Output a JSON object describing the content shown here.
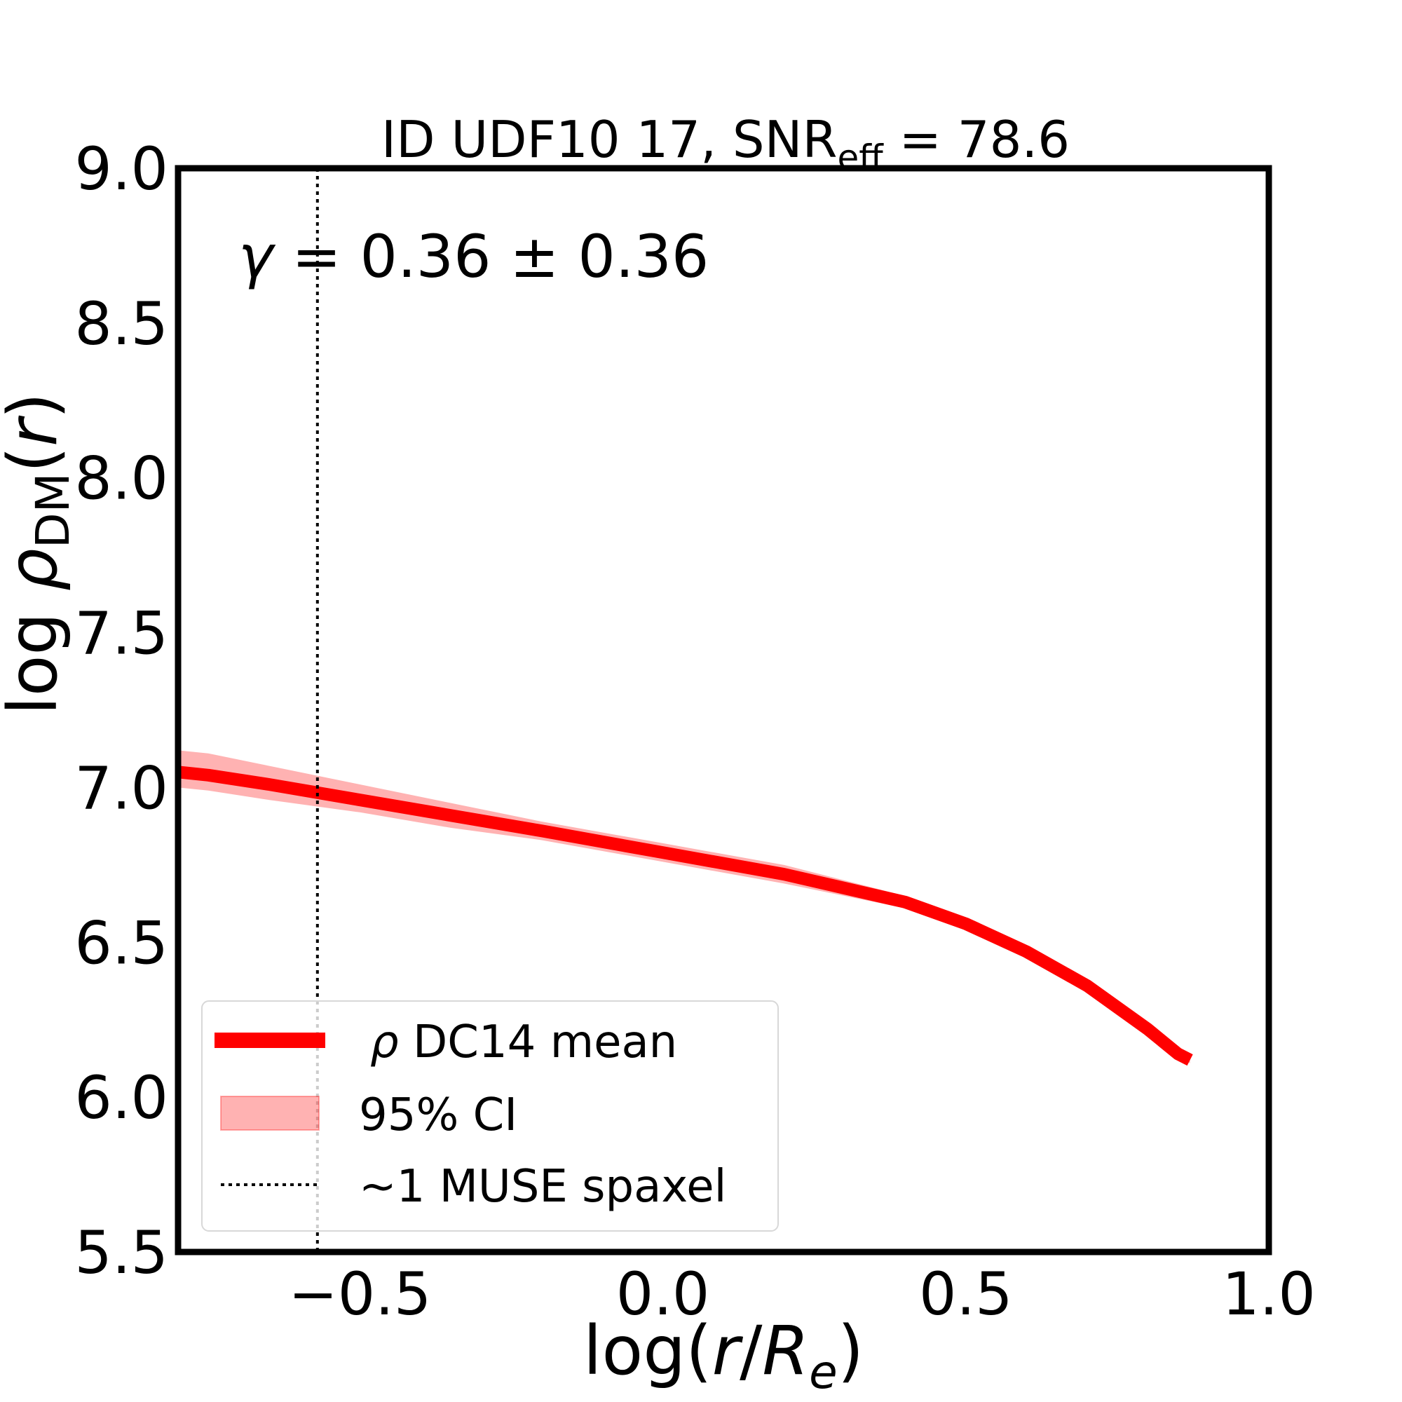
{
  "chart_data": {
    "type": "line",
    "title": {
      "prefix": "ID UDF10 17, SNR",
      "subscript": "eff",
      "suffix": " = 78.6"
    },
    "xlabel": {
      "pre": "log(",
      "r": "r",
      "slash": "/",
      "R": "R",
      "sub": "e",
      "post": ")"
    },
    "ylabel": {
      "pre": "log ",
      "rho": "ρ",
      "sub": "DM",
      "open": "(",
      "r": "r",
      "close": ")"
    },
    "xlim": [
      -0.8,
      1.0
    ],
    "ylim": [
      5.5,
      9.0
    ],
    "xticks": [
      {
        "value": -0.5,
        "label": "−0.5"
      },
      {
        "value": 0.0,
        "label": "0.0"
      },
      {
        "value": 0.5,
        "label": "0.5"
      },
      {
        "value": 1.0,
        "label": "1.0"
      }
    ],
    "yticks": [
      {
        "value": 5.5,
        "label": "5.5"
      },
      {
        "value": 6.0,
        "label": "6.0"
      },
      {
        "value": 6.5,
        "label": "6.5"
      },
      {
        "value": 7.0,
        "label": "7.0"
      },
      {
        "value": 7.5,
        "label": "7.5"
      },
      {
        "value": 8.0,
        "label": "8.0"
      },
      {
        "value": 8.5,
        "label": "8.5"
      },
      {
        "value": 9.0,
        "label": "9.0"
      }
    ],
    "series": [
      {
        "name": "ρ DC14 mean",
        "color": "#ff0000",
        "x": [
          -0.8,
          -0.75,
          -0.65,
          -0.5,
          -0.35,
          -0.2,
          0.0,
          0.2,
          0.4,
          0.5,
          0.6,
          0.7,
          0.8,
          0.85,
          0.87
        ],
        "y": [
          7.05,
          7.04,
          7.01,
          6.96,
          6.91,
          6.86,
          6.79,
          6.72,
          6.63,
          6.56,
          6.47,
          6.36,
          6.22,
          6.14,
          6.12
        ]
      }
    ],
    "band": {
      "name": "95% CI",
      "color": "#ff0000",
      "opacity": 0.3,
      "x": [
        -0.8,
        -0.75,
        -0.65,
        -0.5,
        -0.35,
        -0.2,
        0.0,
        0.2,
        0.4,
        0.5,
        0.6,
        0.7,
        0.8,
        0.85,
        0.87
      ],
      "upper": [
        7.12,
        7.11,
        7.07,
        7.01,
        6.95,
        6.89,
        6.82,
        6.75,
        6.65,
        6.58,
        6.48,
        6.37,
        6.23,
        6.15,
        6.13
      ],
      "lower": [
        7.0,
        6.99,
        6.96,
        6.92,
        6.87,
        6.83,
        6.76,
        6.69,
        6.61,
        6.55,
        6.46,
        6.35,
        6.21,
        6.13,
        6.11
      ]
    },
    "vline": {
      "name": "~1 MUSE spaxel",
      "x": -0.57,
      "color": "#000000",
      "style": "dotted"
    },
    "annotation": {
      "gamma": "γ",
      "text": " = 0.36 ± 0.36"
    },
    "legend": {
      "placement": "lower-left",
      "entries": [
        {
          "label_sym": "ρ",
          "label_rest": " DC14 mean"
        },
        {
          "label": "95% CI"
        },
        {
          "label": "~1 MUSE spaxel"
        }
      ]
    },
    "grid": false
  }
}
